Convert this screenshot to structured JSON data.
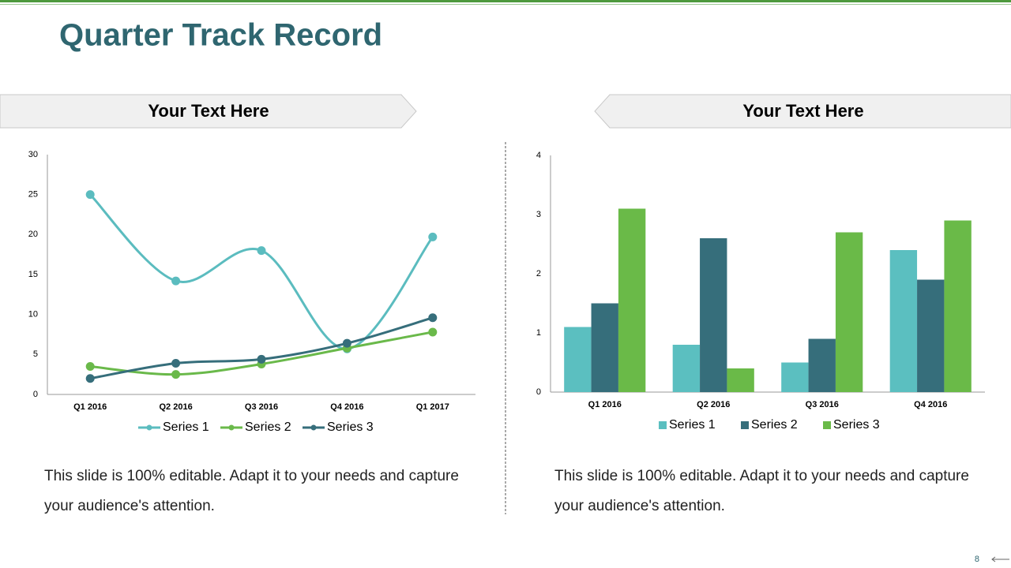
{
  "title": "Quarter Track Record",
  "panels": [
    {
      "heading": "Your Text Here",
      "body": "This slide is 100% editable. Adapt it to your needs and capture your audience's attention."
    },
    {
      "heading": "Your Text Here",
      "body": "This slide is 100% editable. Adapt it to your needs and capture your audience's attention."
    }
  ],
  "page_number": "8",
  "chart_data": [
    {
      "type": "line",
      "categories": [
        "Q1 2016",
        "Q2 2016",
        "Q3 2016",
        "Q4 2016",
        "Q1 2017"
      ],
      "series": [
        {
          "name": "Series 1",
          "color": "#5bbcbf",
          "values": [
            25.0,
            14.2,
            18.0,
            5.7,
            19.7
          ]
        },
        {
          "name": "Series 2",
          "color": "#6ab94a",
          "values": [
            3.5,
            2.5,
            3.8,
            5.8,
            7.8
          ]
        },
        {
          "name": "Series 3",
          "color": "#366e7b",
          "values": [
            2.0,
            3.9,
            4.4,
            6.4,
            9.6
          ]
        }
      ],
      "ylim": [
        0,
        30
      ],
      "yticks": [
        0,
        5,
        10,
        15,
        20,
        25,
        30
      ],
      "grid": false,
      "legend": "bottom",
      "smooth": true
    },
    {
      "type": "bar",
      "categories": [
        "Q1 2016",
        "Q2 2016",
        "Q3 2016",
        "Q4 2016"
      ],
      "series": [
        {
          "name": "Series 1",
          "color": "#5bbfc0",
          "values": [
            1.1,
            0.8,
            0.5,
            2.4
          ]
        },
        {
          "name": "Series 2",
          "color": "#366e7b",
          "values": [
            1.5,
            2.6,
            0.9,
            1.9
          ]
        },
        {
          "name": "Series 3",
          "color": "#6aba48",
          "values": [
            3.1,
            0.4,
            2.7,
            2.9
          ]
        }
      ],
      "ylim": [
        0,
        4
      ],
      "yticks": [
        0,
        1,
        2,
        3,
        4
      ],
      "grid": false,
      "legend": "bottom"
    }
  ]
}
